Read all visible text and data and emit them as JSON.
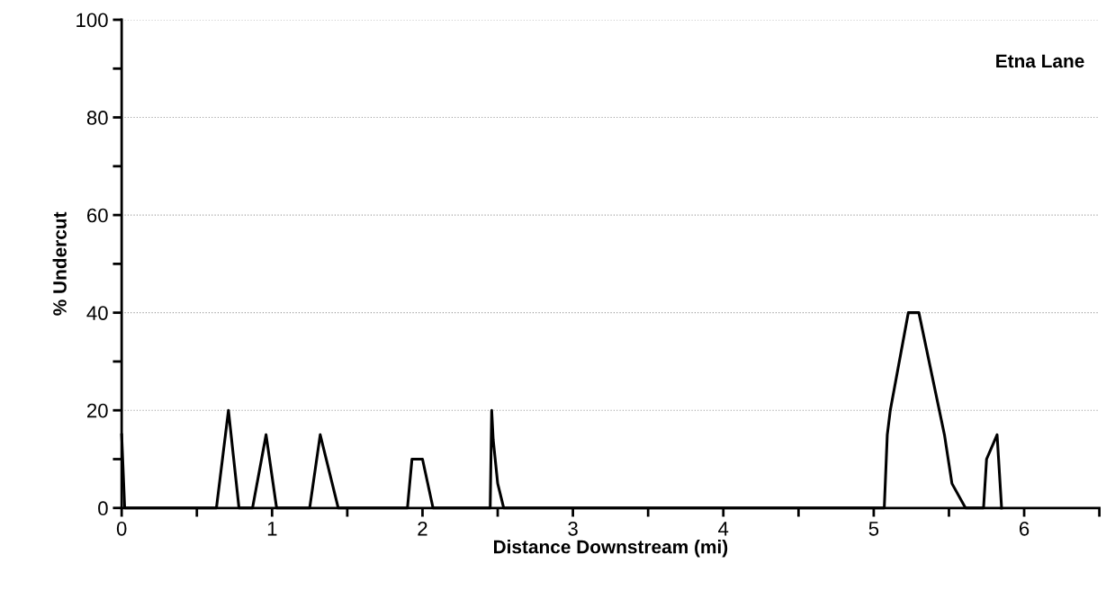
{
  "chart_data": {
    "type": "line",
    "xlabel": "Distance Downstream (mi)",
    "ylabel": "% Undercut",
    "annotations": [
      "Etna Lane"
    ],
    "x": [
      0,
      0.02,
      0.63,
      0.71,
      0.78,
      0.87,
      0.96,
      1.03,
      1.25,
      1.32,
      1.44,
      1.9,
      1.93,
      2.0,
      2.07,
      2.45,
      2.46,
      2.47,
      2.5,
      2.54,
      5.07,
      5.09,
      5.11,
      5.23,
      5.3,
      5.47,
      5.52,
      5.61,
      5.73,
      5.75,
      5.82,
      5.85
    ],
    "series": [
      {
        "color": "#000000",
        "values": [
          15,
          0,
          0,
          20,
          0,
          0,
          15,
          0,
          0,
          15,
          0,
          0,
          10,
          10,
          0,
          0,
          20,
          14,
          5,
          0,
          0,
          15,
          20,
          40,
          40,
          15,
          5,
          0,
          0,
          10,
          15,
          0
        ]
      }
    ],
    "xlim": [
      0,
      6.5
    ],
    "ylim": [
      0,
      100
    ],
    "xticks": [
      0,
      {
        "value": 0.5,
        "label": null
      },
      1,
      {
        "value": 1.5,
        "label": null
      },
      2,
      {
        "value": 2.5,
        "label": null
      },
      3,
      {
        "value": 3.5,
        "label": null
      },
      4,
      {
        "value": 4.5,
        "label": null
      },
      5,
      {
        "value": 5.5,
        "label": null
      },
      6,
      {
        "value": 6.5,
        "label": null
      }
    ],
    "yticks": [
      0,
      {
        "value": 10,
        "label": null
      },
      20,
      {
        "value": 30,
        "label": null
      },
      40,
      {
        "value": 50,
        "label": null
      },
      60,
      {
        "value": 70,
        "label": null
      },
      80,
      {
        "value": 90,
        "label": null
      },
      100
    ],
    "grid": "y",
    "marker": "none",
    "line_style": "solid"
  }
}
